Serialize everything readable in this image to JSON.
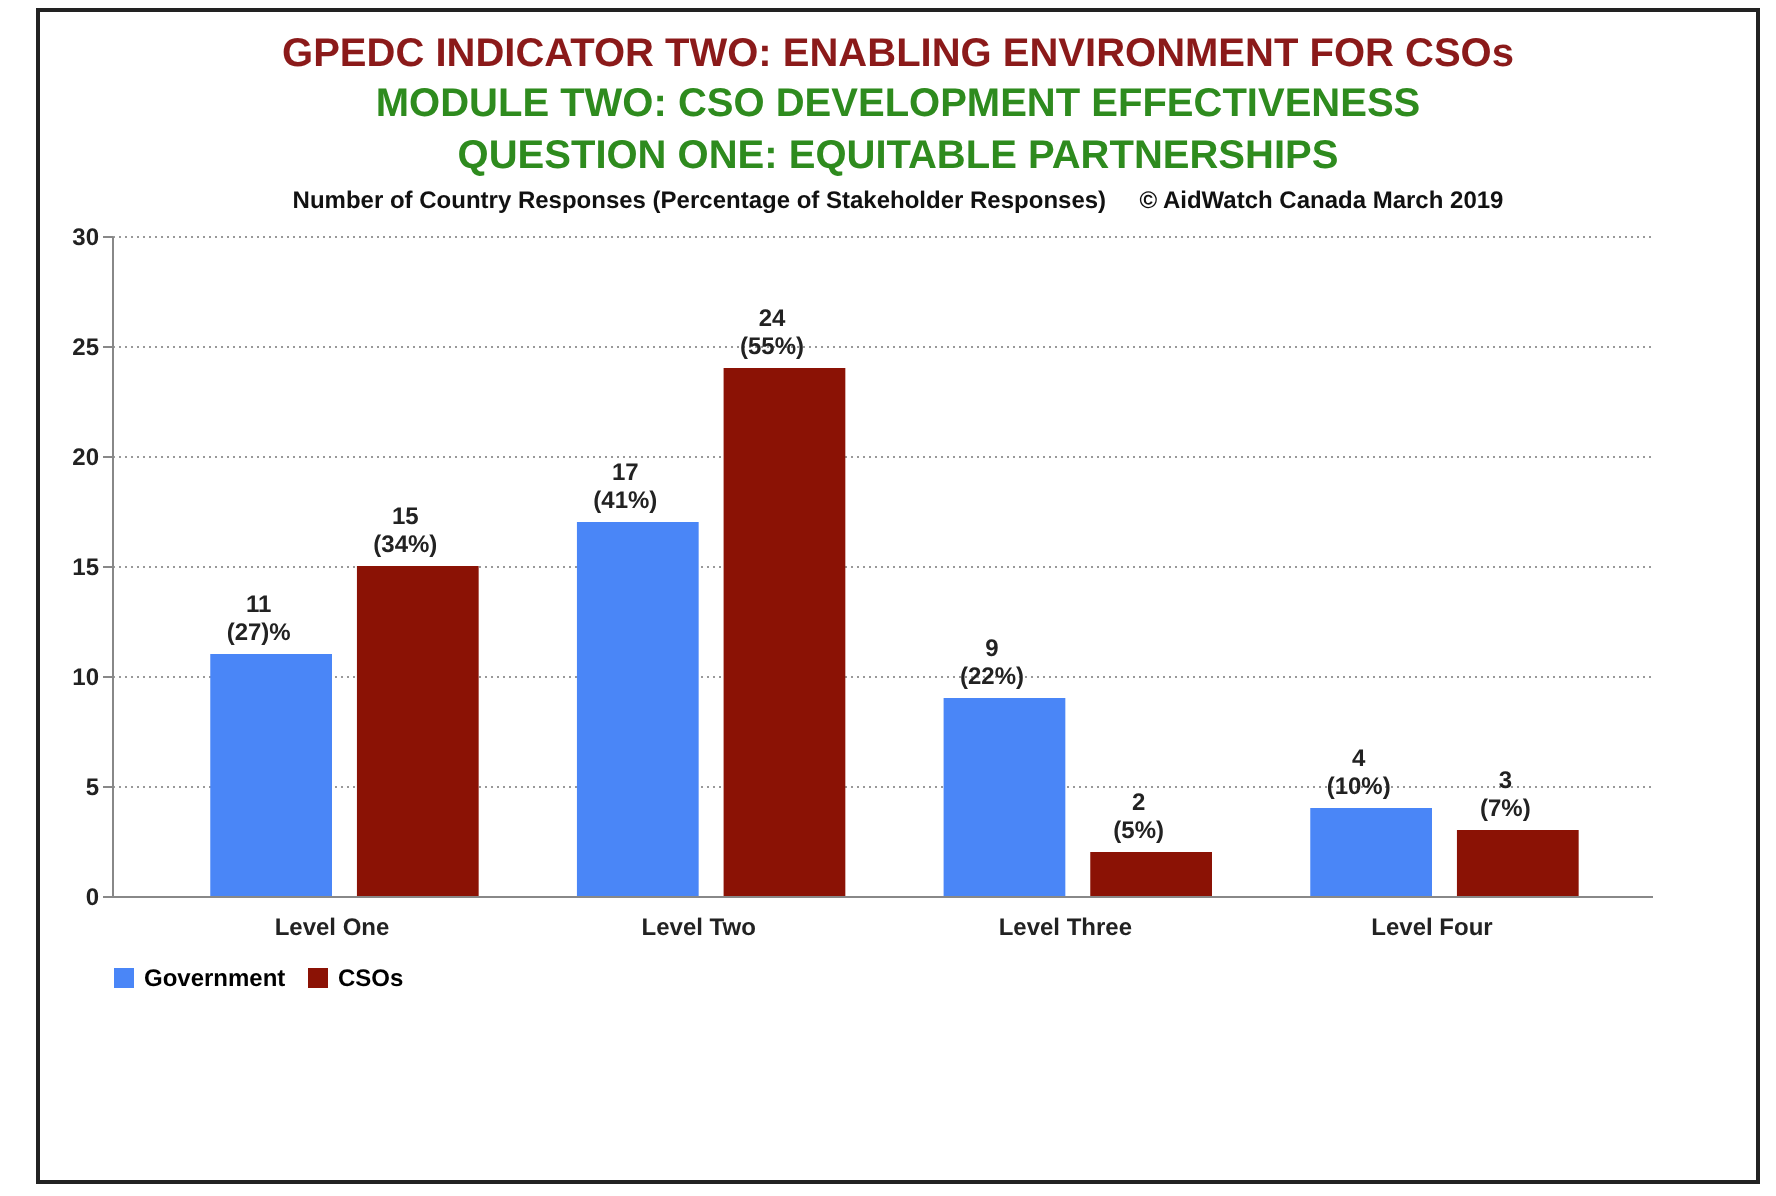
{
  "chart_data": {
    "type": "bar",
    "title": "GPEDC INDICATOR TWO: ENABLING ENVIRONMENT FOR CSOs",
    "subtitle": "MODULE TWO: CSO DEVELOPMENT EFFECTIVENESS\nQUESTION ONE: EQUITABLE PARTNERSHIPS",
    "annotations": [
      "Number of Country Responses (Percentage of Stakeholder Responses)     © AidWatch Canada March 2019"
    ],
    "categories": [
      "Level One",
      "Level Two",
      "Level Three",
      "Level Four"
    ],
    "series": [
      {
        "name": "Government",
        "color": "#4a86f7",
        "values": [
          11,
          17,
          9,
          4
        ],
        "value_labels": [
          "11\n(27)%",
          "17\n(41%)",
          "9\n(22%)",
          "4\n(10%)"
        ]
      },
      {
        "name": "CSOs",
        "color": "#8b1205",
        "values": [
          15,
          24,
          2,
          3
        ],
        "value_labels": [
          "15\n(34%)",
          "24\n(55%)",
          "2\n(5%)",
          "3\n(7%)"
        ]
      }
    ],
    "ylim": [
      0,
      30
    ],
    "yticks": [
      0,
      5,
      10,
      15,
      20,
      25,
      30
    ],
    "grid": "y",
    "legend": "bottom"
  }
}
